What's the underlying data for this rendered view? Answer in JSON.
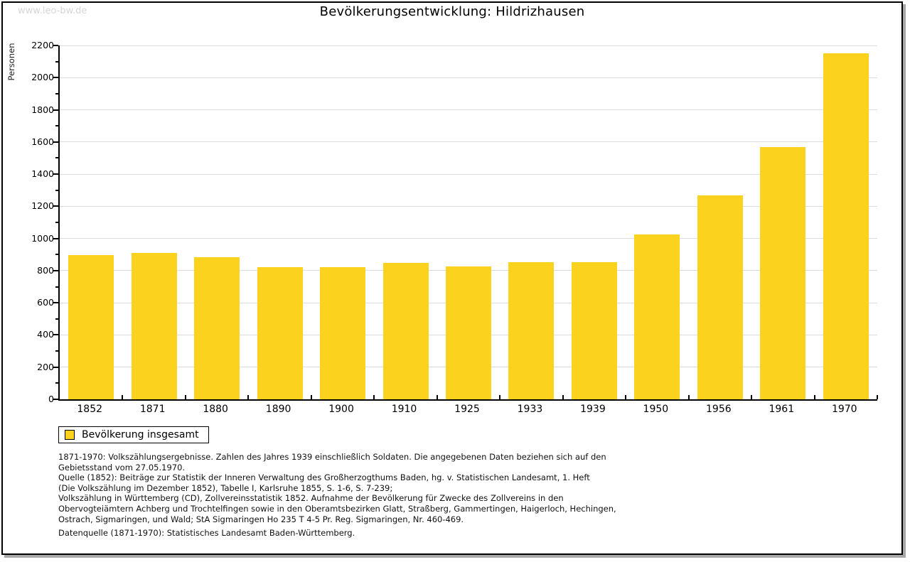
{
  "watermark": "www.leo-bw.de",
  "chart_data": {
    "type": "bar",
    "title": "Bevölkerungsentwicklung: Hildrizhausen",
    "xlabel": "",
    "ylabel": "Personen",
    "categories": [
      "1852",
      "1871",
      "1880",
      "1890",
      "1900",
      "1910",
      "1925",
      "1933",
      "1939",
      "1950",
      "1956",
      "1961",
      "1970"
    ],
    "values": [
      897,
      908,
      884,
      823,
      822,
      847,
      827,
      852,
      852,
      1025,
      1270,
      1568,
      2152
    ],
    "ylim": [
      0,
      2200
    ],
    "ytick_step": 200,
    "minor_tick_step": 100,
    "grid": "horizontal",
    "legend_position": "bottom-left",
    "bar_color": "#fbd21d",
    "gridline_color": "#dcdcdc",
    "legend": {
      "label": "Bevölkerung insgesamt",
      "swatch_color": "#fbd21d"
    }
  },
  "footnotes": {
    "lines": [
      "1871-1970: Volkszählungsergebnisse. Zahlen des Jahres 1939 einschließlich Soldaten. Die angegebenen Daten beziehen sich auf den",
      "Gebietsstand vom 27.05.1970.",
      "Quelle (1852): Beiträge zur Statistik der Inneren Verwaltung des Großherzogthums Baden, hg. v. Statistischen Landesamt, 1. Heft",
      "(Die Volkszählung im Dezember 1852), Tabelle I, Karlsruhe 1855, S. 1-6, S. 7-239;",
      "Volkszählung in Württemberg (CD), Zollvereinsstatistik 1852. Aufnahme der Bevölkerung für Zwecke des Zollvereins in den",
      "Obervogteiämtern Achberg und Trochtelfingen sowie in den Oberamtsbezirken Glatt, Straßberg, Gammertingen, Haigerloch, Hechingen,",
      "Ostrach, Sigmaringen, und Wald; StA Sigmaringen Ho 235 T 4-5 Pr. Reg. Sigmaringen, Nr. 460-469."
    ],
    "datasource": "Datenquelle (1871-1970): Statistisches Landesamt Baden-Württemberg."
  }
}
